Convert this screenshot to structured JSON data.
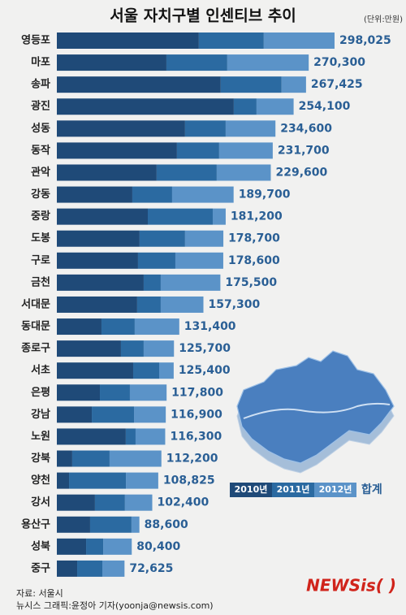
{
  "chart_data": {
    "type": "stacked-bar-horizontal",
    "title": "서울 자치구별 인센티브 추이",
    "unit": "(단위:만원)",
    "categories": [
      "영등포",
      "마포",
      "송파",
      "광진",
      "성동",
      "동작",
      "관악",
      "강동",
      "중랑",
      "도봉",
      "구로",
      "금천",
      "서대문",
      "동대문",
      "종로구",
      "서초",
      "은평",
      "강남",
      "노원",
      "강북",
      "양천",
      "강서",
      "용산구",
      "성북",
      "중구"
    ],
    "series": [
      {
        "name": "2010년",
        "color": "#1f4a78",
        "values": [
          152400,
          117600,
          175900,
          189900,
          137600,
          128900,
          107100,
          81000,
          97600,
          88800,
          87100,
          93200,
          86200,
          47900,
          68800,
          81900,
          46200,
          37500,
          74000,
          16500,
          13100,
          40900,
          35700,
          31400,
          21800
        ]
      },
      {
        "name": "2011년",
        "color": "#2b6aa1",
        "values": [
          69700,
          65300,
          65300,
          24400,
          43600,
          45300,
          64500,
          42700,
          69700,
          48800,
          40100,
          18300,
          25300,
          35700,
          24400,
          27900,
          32200,
          45300,
          10500,
          40100,
          61000,
          32200,
          44400,
          18300,
          27000
        ]
      },
      {
        "name": "2012년",
        "color": "#5b93c8",
        "values": [
          75925,
          87400,
          26225,
          39800,
          53400,
          57500,
          58000,
          66000,
          13900,
          41100,
          51400,
          64000,
          45800,
          47800,
          32500,
          15600,
          39400,
          34100,
          31800,
          55600,
          34725,
          29300,
          8500,
          30700,
          23825
        ]
      }
    ],
    "totals": [
      298025,
      270300,
      267425,
      254100,
      234600,
      231700,
      229600,
      189700,
      181200,
      178700,
      178600,
      175500,
      157300,
      131400,
      125700,
      125400,
      117800,
      116900,
      116300,
      112200,
      108825,
      102400,
      88600,
      80400,
      72625
    ],
    "total_labels": [
      "298,025",
      "270,300",
      "267,425",
      "254,100",
      "234,600",
      "231,700",
      "229,600",
      "189,700",
      "181,200",
      "178,700",
      "178,600",
      "175,500",
      "157,300",
      "131,400",
      "125,700",
      "125,400",
      "117,800",
      "116,900",
      "116,300",
      "112,200",
      "108,825",
      "102,400",
      "88,600",
      "80,400",
      "72,625"
    ],
    "total_legend": "합계",
    "source": "자료: 서울시",
    "credit": "뉴시스 그래픽:윤정아 기자(yoonja@newsis.com)",
    "logo": "NEWSis( )"
  }
}
